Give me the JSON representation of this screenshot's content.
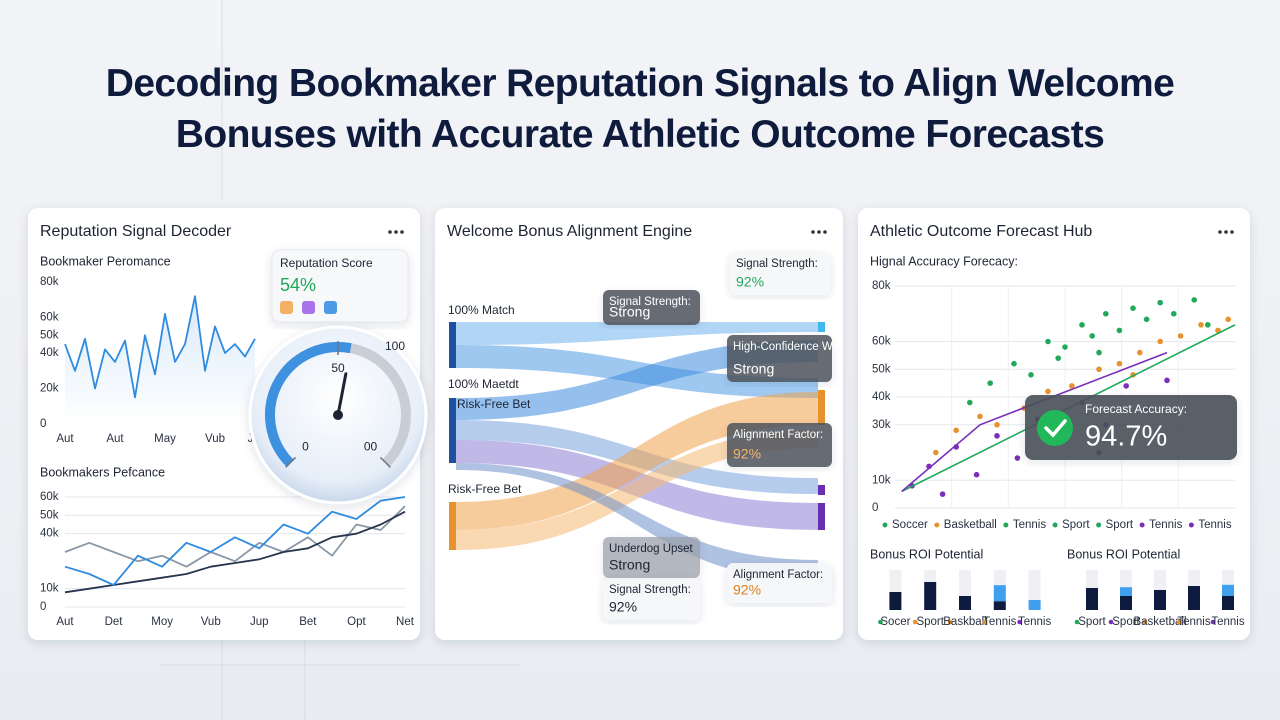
{
  "title": "Decoding Bookmaker Reputation Signals to Align Welcome Bonuses with Accurate Athletic Outcome Forecasts",
  "panels": [
    {
      "title": "Reputation Signal Decoder",
      "chart_data": [
        {
          "type": "line",
          "title": "Bookmaker Peromance",
          "categories": [
            "Aut",
            null,
            null,
            null,
            null,
            "Aut",
            null,
            null,
            null,
            null,
            "May",
            null,
            null,
            null,
            null,
            "Vub",
            null,
            null,
            null,
            "Jul"
          ],
          "series": [
            {
              "color": "#2f8be0",
              "values": [
                45000,
                30000,
                48000,
                20000,
                42000,
                35000,
                47000,
                15000,
                50000,
                28000,
                62000,
                35000,
                45000,
                72000,
                30000,
                55000,
                40000,
                45000,
                38000,
                48000
              ]
            }
          ],
          "ylim": [
            0,
            80000
          ],
          "yticks": [
            {
              "value": 80000,
              "label": "80k"
            },
            {
              "value": 60000,
              "label": "60k"
            },
            {
              "value": 50000,
              "label": "50k"
            },
            {
              "value": 40000,
              "label": "40k"
            },
            {
              "value": 20000,
              "label": "20k"
            },
            0
          ],
          "grid": false
        },
        {
          "type": "line",
          "title": "Bookmakers Pefcance",
          "categories": [
            "Aut",
            null,
            "Det",
            null,
            "Moy",
            null,
            "Vub",
            null,
            "Jup",
            null,
            "Bet",
            null,
            "Opt",
            null,
            "Net"
          ],
          "series": [
            {
              "color": "#8a97a6",
              "values": [
                30000,
                35000,
                30000,
                25000,
                28000,
                22000,
                30000,
                25000,
                35000,
                30000,
                38000,
                28000,
                45000,
                42000,
                55000
              ]
            },
            {
              "color": "#26344d",
              "values": [
                8000,
                10000,
                12000,
                14000,
                16000,
                18000,
                22000,
                24000,
                26000,
                30000,
                32000,
                38000,
                40000,
                45000,
                52000
              ]
            },
            {
              "color": "#2f8be0",
              "values": [
                22000,
                18000,
                12000,
                28000,
                22000,
                35000,
                30000,
                38000,
                32000,
                45000,
                40000,
                52000,
                48000,
                58000,
                60000
              ]
            }
          ],
          "ylim": [
            0,
            60000
          ],
          "yticks": [
            {
              "value": 60000,
              "label": "60k"
            },
            {
              "value": 50000,
              "label": "50k"
            },
            {
              "value": 40000,
              "label": "40k"
            },
            {
              "value": 10000,
              "label": "10k"
            },
            0
          ],
          "grid": true
        }
      ],
      "score": {
        "label": "Reputation Score",
        "value": 54,
        "value_label": "54%"
      },
      "gauge": {
        "ticks": [
          0,
          50,
          {
            "value": 100,
            "label": "00"
          }
        ],
        "max_label": "100"
      }
    },
    {
      "title": "Welcome Bonus Alignment Engine",
      "sources": [
        "100% Match",
        "100% Maetdt",
        "Risk-Free Bet",
        "Risk-Free Bet"
      ],
      "callouts": [
        {
          "label": "Signal Strength:",
          "value": "92%"
        },
        {
          "label": "Signal Strength:",
          "value": "Strong"
        },
        {
          "label": "High-Confidence Win",
          "value": "Strong"
        },
        {
          "label": "Alignment Factor:",
          "value": "92%"
        },
        {
          "label": "Underdog Upset",
          "value": "Strong"
        },
        {
          "label": "Signal Strength:",
          "value": "92%"
        },
        {
          "label": "Alignment Factor:",
          "value": "92%"
        }
      ]
    },
    {
      "title": "Athletic Outcome Forecast Hub",
      "chart_data": [
        {
          "type": "scatter",
          "title": "Hignal Accuracy Forecacy:",
          "xlim": [
            0,
            100
          ],
          "ylim": [
            0,
            80000
          ],
          "yticks": [
            {
              "value": 80000,
              "label": "80k"
            },
            {
              "value": 60000,
              "label": "60k"
            },
            {
              "value": 50000,
              "label": "50k"
            },
            {
              "value": 40000,
              "label": "40k"
            },
            {
              "value": 30000,
              "label": "30k"
            },
            {
              "value": 10000,
              "label": "10k"
            },
            0
          ],
          "grid": true,
          "series": [
            {
              "color": "#22a85a",
              "x": [
                22,
                28,
                35,
                40,
                45,
                50,
                55,
                58,
                62,
                66,
                70,
                74,
                78,
                82,
                88,
                92,
                48,
                60
              ],
              "values": [
                38000,
                45000,
                52000,
                48000,
                60000,
                58000,
                66000,
                62000,
                70000,
                64000,
                72000,
                68000,
                74000,
                70000,
                75000,
                66000,
                54000,
                56000
              ]
            },
            {
              "color": "#e8922d",
              "x": [
                12,
                18,
                25,
                30,
                38,
                45,
                52,
                60,
                66,
                72,
                78,
                84,
                90,
                95,
                98,
                70
              ],
              "values": [
                20000,
                28000,
                33000,
                30000,
                36000,
                42000,
                44000,
                50000,
                52000,
                56000,
                60000,
                62000,
                66000,
                64000,
                68000,
                48000
              ]
            },
            {
              "color": "#7a2fb8",
              "x": [
                5,
                10,
                14,
                18,
                24,
                30,
                36,
                42,
                48,
                55,
                62,
                68,
                74,
                80,
                60
              ],
              "values": [
                8000,
                15000,
                5000,
                22000,
                12000,
                26000,
                18000,
                32000,
                26000,
                38000,
                30000,
                44000,
                36000,
                46000,
                20000
              ]
            }
          ],
          "trend_lines": [
            {
              "color": "#22a85a",
              "x": [
                2,
                100
              ],
              "values": [
                6000,
                66000
              ]
            },
            {
              "color": "#7a2fb8",
              "x": [
                2,
                25,
                80
              ],
              "values": [
                6000,
                30000,
                56000
              ]
            }
          ],
          "legend": [
            {
              "name": "Soccer",
              "color": "#22a85a"
            },
            {
              "name": "Basketball",
              "color": "#e8922d"
            },
            {
              "name": "Tennis",
              "color": "#22a85a"
            },
            {
              "name": "Sport",
              "color": "#22a85a"
            },
            {
              "name": "Sport",
              "color": "#22a85a"
            },
            {
              "name": "Tennis",
              "color": "#7a2fb8"
            },
            {
              "name": "Tennis",
              "color": "#7a2fb8"
            }
          ]
        },
        {
          "type": "bar",
          "title": "Bonus ROI Potential",
          "ylim": [
            0,
            100
          ],
          "categories": [
            "Socer",
            "Sport",
            "Baskball",
            "Tennis",
            "Tennis"
          ],
          "category_colors": [
            "#22a85a",
            "#e8922d",
            "#e8922d",
            "#e8922d",
            "#7a2fb8"
          ],
          "series": [
            {
              "color": "#0d1b3e",
              "values": [
                45,
                70,
                35,
                22,
                0
              ]
            },
            {
              "color": "#3fa0f0",
              "values": [
                0,
                0,
                0,
                40,
                25
              ]
            }
          ]
        },
        {
          "type": "bar",
          "title": "Bonus ROI Potential",
          "ylim": [
            0,
            100
          ],
          "categories": [
            "Sport",
            "Sport",
            "Basketball",
            "Tennis",
            "Tennis"
          ],
          "category_colors": [
            "#22a85a",
            "#7a2fb8",
            "#e8922d",
            "#e8922d",
            "#7a2fb8"
          ],
          "series": [
            {
              "color": "#0d1b3e",
              "values": [
                55,
                35,
                50,
                60,
                35
              ]
            },
            {
              "color": "#3fa0f0",
              "values": [
                0,
                22,
                0,
                0,
                28
              ]
            }
          ]
        }
      ],
      "forecast": {
        "label": "Forecast Accuracy:",
        "value": "94.7%"
      }
    }
  ]
}
